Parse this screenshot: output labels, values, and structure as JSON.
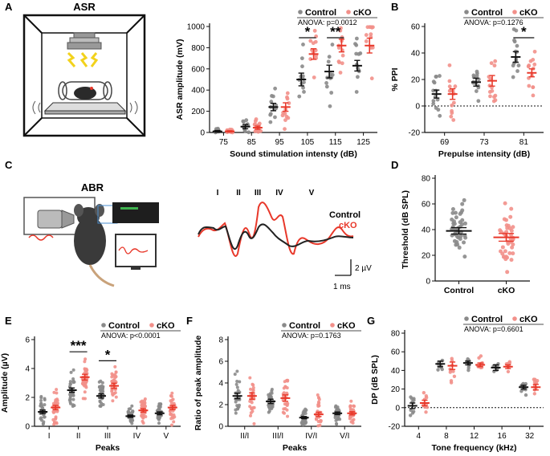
{
  "colors": {
    "control": "#444444",
    "cko": "#e8382a",
    "control_dot": "#8a8a8a",
    "cko_dot": "#f2908a"
  },
  "panels": {
    "A": {
      "letter": "A",
      "title": "ASR"
    },
    "B": {
      "letter": "B"
    },
    "C": {
      "letter": "C",
      "title": "ABR",
      "peaks": [
        "I",
        "II",
        "III",
        "IV",
        "V"
      ],
      "legend_control": "Control",
      "legend_cko": "cKO",
      "scale_v": "2 µV",
      "scale_t": "1 ms"
    },
    "D": {
      "letter": "D"
    },
    "E": {
      "letter": "E"
    },
    "F": {
      "letter": "F"
    },
    "G": {
      "letter": "G"
    }
  },
  "chart_data": [
    {
      "id": "A",
      "type": "scatter",
      "ylabel": "ASR amplitude (mV)",
      "xlabel": "Sound stimulation intensty (dB)",
      "categories": [
        "75",
        "85",
        "95",
        "105",
        "115",
        "125"
      ],
      "ylim": [
        0,
        1000
      ],
      "yticks": [
        0,
        200,
        400,
        600,
        800,
        1000
      ],
      "legend": [
        "Control",
        "cKO"
      ],
      "anova": "ANOVA: p=0.0012",
      "series": [
        {
          "name": "Control",
          "mean": [
            10,
            55,
            240,
            500,
            575,
            630
          ],
          "sem": [
            8,
            20,
            35,
            60,
            60,
            50
          ]
        },
        {
          "name": "cKO",
          "mean": [
            10,
            45,
            240,
            740,
            820,
            820
          ],
          "sem": [
            6,
            15,
            40,
            50,
            60,
            70
          ]
        }
      ],
      "significance": [
        {
          "category": "105",
          "label": "*"
        },
        {
          "category": "115",
          "label": "**"
        }
      ]
    },
    {
      "id": "B",
      "type": "scatter",
      "ylabel": "% PPI",
      "xlabel": "Prepulse intensity (dB)",
      "categories": [
        "69",
        "73",
        "81"
      ],
      "ylim": [
        -20,
        60
      ],
      "yticks": [
        -20,
        0,
        20,
        40,
        60
      ],
      "legend": [
        "Control",
        "cKO"
      ],
      "anova": "ANOVA: p=0.1276",
      "series": [
        {
          "name": "Control",
          "mean": [
            9,
            18,
            37
          ],
          "sem": [
            3,
            3,
            4
          ]
        },
        {
          "name": "cKO",
          "mean": [
            9,
            19,
            25
          ],
          "sem": [
            4,
            4,
            3
          ]
        }
      ],
      "significance": [
        {
          "category": "81",
          "label": "*"
        }
      ]
    },
    {
      "id": "D",
      "type": "scatter",
      "ylabel": "Threshold (dB SPL)",
      "categories": [
        "Control",
        "cKO"
      ],
      "ylim": [
        0,
        80
      ],
      "yticks": [
        0,
        20,
        40,
        60,
        80
      ],
      "series": [
        {
          "name": "Control",
          "mean": [
            39
          ],
          "sem": [
            2.5
          ]
        },
        {
          "name": "cKO",
          "mean": [
            34
          ],
          "sem": [
            3
          ]
        }
      ]
    },
    {
      "id": "E",
      "type": "scatter",
      "ylabel": "Amplitude (µV)",
      "xlabel": "Peaks",
      "categories": [
        "I",
        "II",
        "III",
        "IV",
        "V"
      ],
      "ylim": [
        0,
        6
      ],
      "yticks": [
        0,
        2,
        4,
        6
      ],
      "legend": [
        "Control",
        "cKO"
      ],
      "anova": "ANOVA: p<0.0001",
      "series": [
        {
          "name": "Control",
          "mean": [
            1.0,
            2.5,
            2.1,
            0.7,
            0.9
          ],
          "sem": [
            0.12,
            0.15,
            0.15,
            0.08,
            0.1
          ]
        },
        {
          "name": "cKO",
          "mean": [
            1.3,
            3.4,
            2.8,
            1.1,
            1.3
          ],
          "sem": [
            0.15,
            0.2,
            0.18,
            0.12,
            0.15
          ]
        }
      ],
      "significance": [
        {
          "category": "II",
          "label": "***"
        },
        {
          "category": "III",
          "label": "*"
        }
      ]
    },
    {
      "id": "F",
      "type": "scatter",
      "ylabel": "Ratio of peak amplitude",
      "xlabel": "Peaks",
      "categories": [
        "II/I",
        "III/I",
        "IV/I",
        "V/I"
      ],
      "ylim": [
        0,
        8
      ],
      "yticks": [
        0,
        2,
        4,
        6,
        8
      ],
      "legend": [
        "Control",
        "cKO"
      ],
      "anova": "ANOVA: p=0.1763",
      "series": [
        {
          "name": "Control",
          "mean": [
            2.8,
            2.3,
            0.8,
            1.2
          ],
          "sem": [
            0.25,
            0.2,
            0.1,
            0.12
          ]
        },
        {
          "name": "cKO",
          "mean": [
            2.8,
            2.6,
            1.1,
            1.2
          ],
          "sem": [
            0.3,
            0.3,
            0.2,
            0.15
          ]
        }
      ]
    },
    {
      "id": "G",
      "type": "scatter",
      "ylabel": "DP (dB SPL)",
      "xlabel": "Tone frequency (kHz)",
      "categories": [
        "4",
        "8",
        "12",
        "16",
        "32"
      ],
      "ylim": [
        -20,
        80
      ],
      "yticks": [
        -20,
        0,
        20,
        40,
        60,
        80
      ],
      "legend": [
        "Control",
        "cKO"
      ],
      "anova": "ANOVA: p=0.6601",
      "series": [
        {
          "name": "Control",
          "mean": [
            2,
            47,
            48,
            43,
            22
          ],
          "sem": [
            3,
            3,
            2,
            3,
            2
          ]
        },
        {
          "name": "cKO",
          "mean": [
            5,
            45,
            46,
            44,
            22
          ],
          "sem": [
            3,
            4,
            2,
            2,
            3
          ]
        }
      ]
    }
  ]
}
